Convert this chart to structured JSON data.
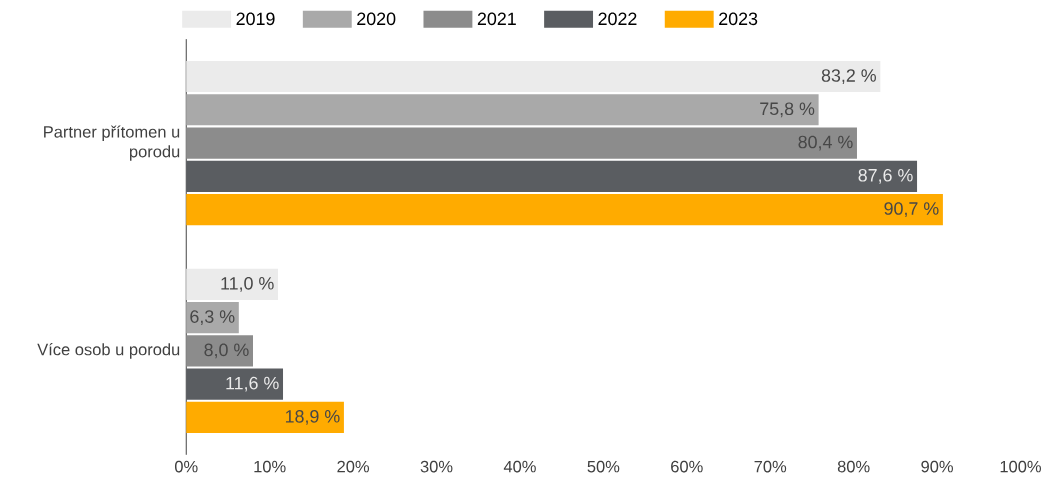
{
  "chart_data": {
    "type": "bar",
    "orientation": "horizontal",
    "categories": [
      "Partner přítomen u porodu",
      "Více osob u porodu"
    ],
    "series": [
      {
        "name": "2019",
        "color": "#ebebeb",
        "values": [
          83.2,
          11.0
        ],
        "value_labels": [
          "83,2 %",
          "11,0 %"
        ]
      },
      {
        "name": "2020",
        "color": "#a9a9a9",
        "values": [
          75.8,
          6.3
        ],
        "value_labels": [
          "75,8 %",
          "6,3 %"
        ]
      },
      {
        "name": "2021",
        "color": "#8c8c8c",
        "values": [
          80.4,
          8.0
        ],
        "value_labels": [
          "80,4 %",
          "8,0 %"
        ]
      },
      {
        "name": "2022",
        "color": "#5a5d61",
        "values": [
          87.6,
          11.6
        ],
        "value_labels": [
          "87,6 %",
          "11,6 %"
        ]
      },
      {
        "name": "2023",
        "color": "#ffab00",
        "values": [
          90.7,
          18.9
        ],
        "value_labels": [
          "90,7 %",
          "18,9 %"
        ]
      }
    ],
    "xlim": [
      0,
      100
    ],
    "xticks": [
      {
        "value": 0,
        "label": "0%"
      },
      {
        "value": 10,
        "label": "10%"
      },
      {
        "value": 20,
        "label": "20%"
      },
      {
        "value": 30,
        "label": "30%"
      },
      {
        "value": 40,
        "label": "40%"
      },
      {
        "value": 50,
        "label": "50%"
      },
      {
        "value": 60,
        "label": "60%"
      },
      {
        "value": 70,
        "label": "70%"
      },
      {
        "value": 80,
        "label": "80%"
      },
      {
        "value": 90,
        "label": "90%"
      },
      {
        "value": 100,
        "label": "100%"
      }
    ],
    "legend": "top",
    "grid": false
  }
}
